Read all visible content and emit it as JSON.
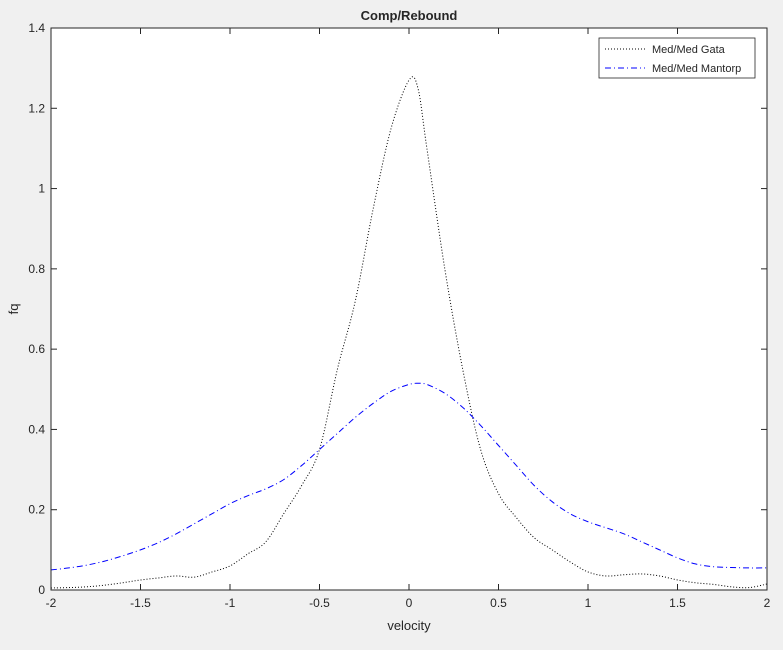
{
  "chart_data": {
    "type": "line",
    "title": "Comp/Rebound",
    "xlabel": "velocity",
    "ylabel": "fq",
    "xlim": [
      -2,
      2
    ],
    "ylim": [
      0,
      1.4
    ],
    "xticks": [
      -2,
      -1.5,
      -1,
      -0.5,
      0,
      0.5,
      1,
      1.5,
      2
    ],
    "xtick_labels": [
      "-2",
      "-1.5",
      "-1",
      "-0.5",
      "0",
      "0.5",
      "1",
      "1.5",
      "2"
    ],
    "yticks": [
      0,
      0.2,
      0.4,
      0.6,
      0.8,
      1,
      1.2,
      1.4
    ],
    "ytick_labels": [
      "0",
      "0.2",
      "0.4",
      "0.6",
      "0.8",
      "1",
      "1.2",
      "1.4"
    ],
    "grid": false,
    "legend_position": "top-right",
    "background": "#f0f0f0",
    "axes_background": "#ffffff",
    "series": [
      {
        "name": "Med/Med Gata",
        "color": "#000000",
        "line_style": "dotted",
        "x": [
          -2,
          -1.9,
          -1.8,
          -1.7,
          -1.6,
          -1.5,
          -1.4,
          -1.3,
          -1.2,
          -1.1,
          -1.0,
          -0.9,
          -0.8,
          -0.7,
          -0.6,
          -0.5,
          -0.4,
          -0.3,
          -0.2,
          -0.1,
          0.0,
          0.05,
          0.1,
          0.2,
          0.3,
          0.4,
          0.5,
          0.6,
          0.7,
          0.8,
          0.9,
          1.0,
          1.1,
          1.2,
          1.3,
          1.4,
          1.5,
          1.6,
          1.7,
          1.8,
          1.9,
          2.0
        ],
        "y": [
          0.005,
          0.006,
          0.008,
          0.012,
          0.018,
          0.025,
          0.03,
          0.035,
          0.032,
          0.045,
          0.06,
          0.09,
          0.12,
          0.19,
          0.26,
          0.35,
          0.55,
          0.72,
          0.95,
          1.15,
          1.27,
          1.25,
          1.1,
          0.8,
          0.55,
          0.35,
          0.24,
          0.18,
          0.13,
          0.1,
          0.07,
          0.045,
          0.035,
          0.038,
          0.04,
          0.035,
          0.025,
          0.018,
          0.014,
          0.008,
          0.006,
          0.015
        ]
      },
      {
        "name": "Med/Med Mantorp",
        "color": "#0000ff",
        "line_style": "dash-dot",
        "x": [
          -2,
          -1.9,
          -1.8,
          -1.7,
          -1.6,
          -1.5,
          -1.4,
          -1.3,
          -1.2,
          -1.1,
          -1.0,
          -0.9,
          -0.8,
          -0.7,
          -0.6,
          -0.5,
          -0.4,
          -0.3,
          -0.2,
          -0.1,
          0.0,
          0.05,
          0.1,
          0.2,
          0.3,
          0.4,
          0.5,
          0.6,
          0.7,
          0.8,
          0.9,
          1.0,
          1.1,
          1.2,
          1.3,
          1.4,
          1.5,
          1.6,
          1.7,
          1.8,
          1.9,
          2.0
        ],
        "y": [
          0.05,
          0.055,
          0.062,
          0.072,
          0.085,
          0.1,
          0.118,
          0.14,
          0.165,
          0.19,
          0.215,
          0.235,
          0.252,
          0.275,
          0.31,
          0.35,
          0.39,
          0.43,
          0.465,
          0.495,
          0.512,
          0.515,
          0.512,
          0.49,
          0.455,
          0.41,
          0.36,
          0.31,
          0.26,
          0.22,
          0.19,
          0.17,
          0.155,
          0.14,
          0.12,
          0.1,
          0.08,
          0.065,
          0.058,
          0.056,
          0.055,
          0.055
        ]
      }
    ]
  }
}
